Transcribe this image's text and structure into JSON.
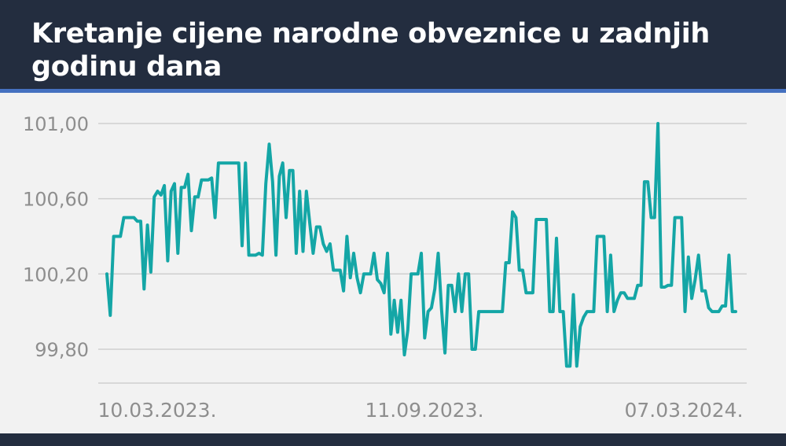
{
  "colors": {
    "header_bg": "#232d3f",
    "accent_rule": "#4571c0",
    "line": "#14a6a6",
    "grid": "#cfcfcf",
    "tick_text": "#8e8e8e",
    "background": "#f2f2f2"
  },
  "chart_data": {
    "type": "line",
    "title": "Kretanje cijene narodne obveznice u zadnjih godinu dana",
    "xlabel": "",
    "ylabel": "",
    "ylim": [
      99.62,
      101.0
    ],
    "yticks": [
      {
        "value": 99.8,
        "label": "99,80"
      },
      {
        "value": 100.2,
        "label": "100,20"
      },
      {
        "value": 100.6,
        "label": "100,60"
      },
      {
        "value": 101.0,
        "label": "101,00"
      }
    ],
    "xticks": [
      "10.03.2023.",
      "11.09.2023.",
      "07.03.2024."
    ],
    "grid": true,
    "series": [
      {
        "values": [
          100.2,
          99.98,
          100.4,
          100.4,
          100.4,
          100.5,
          100.5,
          100.5,
          100.5,
          100.48,
          100.48,
          100.12,
          100.46,
          100.21,
          100.61,
          100.64,
          100.62,
          100.67,
          100.27,
          100.64,
          100.68,
          100.31,
          100.66,
          100.66,
          100.73,
          100.43,
          100.61,
          100.61,
          100.7,
          100.7,
          100.7,
          100.71,
          100.5,
          100.79,
          100.79,
          100.79,
          100.79,
          100.79,
          100.79,
          100.79,
          100.35,
          100.79,
          100.3,
          100.3,
          100.3,
          100.31,
          100.3,
          100.68,
          100.89,
          100.69,
          100.3,
          100.72,
          100.79,
          100.5,
          100.75,
          100.75,
          100.31,
          100.64,
          100.32,
          100.64,
          100.47,
          100.31,
          100.45,
          100.45,
          100.36,
          100.32,
          100.36,
          100.22,
          100.22,
          100.22,
          100.11,
          100.4,
          100.18,
          100.31,
          100.18,
          100.1,
          100.2,
          100.2,
          100.2,
          100.31,
          100.17,
          100.15,
          100.1,
          100.31,
          99.88,
          100.06,
          99.89,
          100.06,
          99.77,
          99.9,
          100.2,
          100.2,
          100.2,
          100.31,
          99.86,
          100.0,
          100.02,
          100.12,
          100.31,
          100.01,
          99.78,
          100.14,
          100.14,
          100.0,
          100.2,
          100.0,
          100.2,
          100.2,
          99.8,
          99.8,
          100.0,
          100.0,
          100.0,
          100.0,
          100.0,
          100.0,
          100.0,
          100.0,
          100.26,
          100.26,
          100.53,
          100.5,
          100.22,
          100.22,
          100.1,
          100.1,
          100.1,
          100.49,
          100.49,
          100.49,
          100.49,
          100.0,
          100.0,
          100.39,
          100.0,
          100.0,
          99.71,
          99.71,
          100.09,
          99.71,
          99.92,
          99.97,
          100.0,
          100.0,
          100.0,
          100.4,
          100.4,
          100.4,
          100.0,
          100.3,
          100.0,
          100.06,
          100.1,
          100.1,
          100.07,
          100.07,
          100.07,
          100.14,
          100.14,
          100.69,
          100.69,
          100.5,
          100.5,
          101.0,
          100.13,
          100.13,
          100.14,
          100.14,
          100.5,
          100.5,
          100.5,
          100.0,
          100.29,
          100.07,
          100.17,
          100.3,
          100.11,
          100.11,
          100.02,
          100.0,
          100.0,
          100.0,
          100.03,
          100.03,
          100.3,
          100.0,
          100.0
        ]
      }
    ]
  }
}
